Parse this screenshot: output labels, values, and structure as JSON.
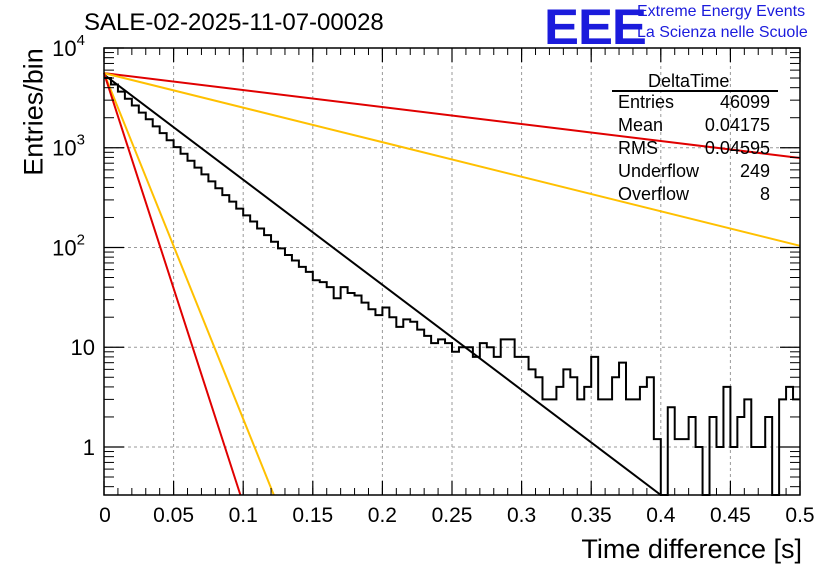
{
  "title": "SALE-02-2025-11-07-00028",
  "logo": {
    "mark": "EEE",
    "line1": "Extreme Energy Events",
    "line2": "La Scienza nelle Scuole",
    "color": "#1b1bdc"
  },
  "stats": {
    "name": "DeltaTime",
    "rows": [
      {
        "label": "Entries",
        "value": "46099"
      },
      {
        "label": "Mean",
        "value": "0.04175"
      },
      {
        "label": "RMS",
        "value": "0.04595"
      },
      {
        "label": "Underflow",
        "value": "249"
      },
      {
        "label": "Overflow",
        "value": "8"
      }
    ]
  },
  "chart_data": {
    "type": "line",
    "title": "SALE-02-2025-11-07-00028",
    "xlabel": "Time difference [s]",
    "ylabel": "Entries/bin",
    "xlim": [
      0,
      0.5
    ],
    "ylim": [
      0.33,
      10000
    ],
    "yscale": "log",
    "grid": true,
    "x_ticks": [
      "0",
      "0.05",
      "0.1",
      "0.15",
      "0.2",
      "0.25",
      "0.3",
      "0.35",
      "0.4",
      "0.45",
      "0.5"
    ],
    "y_ticks": [
      {
        "value": 1,
        "base": "1",
        "exp": ""
      },
      {
        "value": 10,
        "base": "10",
        "exp": ""
      },
      {
        "value": 100,
        "base": "10",
        "exp": "2"
      },
      {
        "value": 1000,
        "base": "10",
        "exp": "3"
      },
      {
        "value": 10000,
        "base": "10",
        "exp": "4"
      }
    ],
    "histogram": {
      "name": "DeltaTime",
      "color": "#000000",
      "bin_width": 0.005,
      "values": [
        5000,
        4300,
        3650,
        3100,
        2650,
        2250,
        1930,
        1640,
        1400,
        1190,
        1015,
        870,
        740,
        632,
        540,
        460,
        392,
        335,
        288,
        245,
        210,
        182,
        155,
        133,
        114,
        98,
        84,
        74,
        64,
        57,
        47,
        45,
        40,
        31,
        40,
        35,
        33,
        28,
        24,
        21,
        25,
        20,
        16,
        19,
        18,
        15,
        13,
        11,
        12,
        11,
        9,
        10,
        10,
        8,
        11,
        10,
        8,
        12,
        12,
        8,
        8,
        6,
        5,
        3,
        3,
        4,
        6,
        5,
        3,
        4,
        8,
        3,
        3,
        5,
        7,
        3,
        3,
        4,
        5,
        1.2,
        0.2,
        2.5,
        1.2,
        1.2,
        2,
        1,
        0.2,
        2,
        1,
        4,
        1,
        2,
        3,
        1,
        1,
        2,
        0.2,
        3,
        4,
        3
      ]
    },
    "series": [
      {
        "name": "fit",
        "color": "#000000",
        "x": [
          0,
          0.4
        ],
        "y": [
          5400,
          0.33
        ]
      },
      {
        "name": "slow-upper",
        "color": "#e00000",
        "x": [
          0,
          0.5
        ],
        "y": [
          5600,
          790
        ]
      },
      {
        "name": "slow-lower",
        "color": "#ffc000",
        "x": [
          0,
          0.5
        ],
        "y": [
          5600,
          104
        ]
      },
      {
        "name": "fast-upper",
        "color": "#ffc000",
        "x": [
          0,
          0.122
        ],
        "y": [
          5600,
          0.33
        ]
      },
      {
        "name": "fast-lower",
        "color": "#e00000",
        "x": [
          0,
          0.098
        ],
        "y": [
          5600,
          0.33
        ]
      }
    ]
  }
}
